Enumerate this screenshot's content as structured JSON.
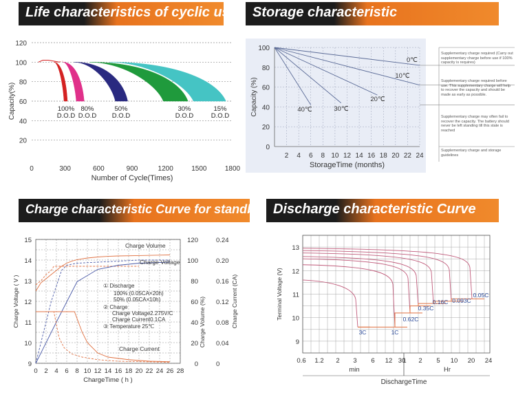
{
  "titles": {
    "life": "Life characteristics of cyclic use",
    "storage": "Storage characteristic",
    "charge": "Charge characteristic Curve for standby use",
    "discharge": "Discharge characteristic Curve"
  },
  "colors": {
    "banner_dark": "#1c1c1c",
    "banner_orange": "#f08a2c",
    "grid": "#7a7a7a",
    "charge_orange": "#e07040",
    "charge_blue": "#4a5aa8"
  },
  "chart_data": [
    {
      "type": "area",
      "title": "Life characteristics of cyclic use",
      "xlabel": "Number of Cycle(Times)",
      "ylabel": "Capacity(%)",
      "xlim": [
        0,
        1800
      ],
      "ylim": [
        0,
        120
      ],
      "x_ticks": [
        "0",
        "300",
        "600",
        "900",
        "1200",
        "1500",
        "1800"
      ],
      "y_ticks": [
        "20",
        "40",
        "60",
        "80",
        "100",
        "120"
      ],
      "series": [
        {
          "name": "100% D.O.D",
          "label1": "100%",
          "label2": "D.O.D",
          "color": "#d42222",
          "start": 200,
          "inner_end": 290,
          "outer_end": 320
        },
        {
          "name": "80% D.O.D",
          "label1": "80%",
          "label2": "D.O.D",
          "color": "#e0308a",
          "start": 280,
          "inner_end": 400,
          "outer_end": 470
        },
        {
          "name": "50% D.O.D",
          "label1": "50%",
          "label2": "D.O.D",
          "color": "#2a2a80",
          "start": 380,
          "inner_end": 750,
          "outer_end": 860
        },
        {
          "name": "30% D.O.D",
          "label1": "30%",
          "label2": "D.O.D",
          "color": "#1f9a3c",
          "start": 520,
          "inner_end": 1180,
          "outer_end": 1400
        },
        {
          "name": "15% D.O.D",
          "label1": "15%",
          "label2": "D.O.D",
          "color": "#45c4c4",
          "start": 700,
          "inner_end": 1450,
          "outer_end": 1740
        }
      ],
      "start_curve": [
        [
          60,
          100
        ],
        [
          100,
          102
        ],
        [
          150,
          102
        ],
        [
          200,
          101
        ],
        [
          250,
          100
        ]
      ]
    },
    {
      "type": "line",
      "title": "Storage characteristic",
      "xlabel": "StorageTime (months)",
      "ylabel": "Capacity (%)",
      "xlim": [
        0,
        24
      ],
      "ylim": [
        0,
        100
      ],
      "x_ticks": [
        "2",
        "4",
        "6",
        "8",
        "10",
        "12",
        "14",
        "16",
        "18",
        "20",
        "22",
        "24"
      ],
      "y_ticks": [
        "0",
        "20",
        "40",
        "60",
        "80",
        "100"
      ],
      "series": [
        {
          "name": "0℃",
          "x": [
            0,
            24
          ],
          "y": [
            100,
            82
          ]
        },
        {
          "name": "10℃",
          "x": [
            0,
            24
          ],
          "y": [
            100,
            62
          ]
        },
        {
          "name": "20℃",
          "x": [
            0,
            17
          ],
          "y": [
            100,
            52
          ]
        },
        {
          "name": "30℃",
          "x": [
            0,
            11
          ],
          "y": [
            100,
            44
          ]
        },
        {
          "name": "40℃",
          "x": [
            0,
            6
          ],
          "y": [
            100,
            42
          ]
        }
      ],
      "thresholds": [
        82,
        62,
        42
      ],
      "notes": [
        "Supplementary charge required (Carry out supplementary charge before use if 100% capacity is requires)",
        "Supplementary charge required before use. This supplementary charge will help to recover the capacity and should be made as early as possible.",
        "Supplementary charge may often fail to recover the capacity. The battery should never be left standing till this state is reached",
        "Supplementary charge and storage guidelines"
      ]
    },
    {
      "type": "line",
      "title": "Charge characteristic Curve for standby use",
      "xlabel": "ChargeTime ( h )",
      "ylabel": "Charge Voltage ( V )",
      "y2label": "Charge Volume (%)",
      "y3label": "Charge Current (CA)",
      "xlim": [
        0,
        28
      ],
      "x_ticks": [
        "0",
        "2",
        "4",
        "6",
        "8",
        "10",
        "12",
        "14",
        "16",
        "18",
        "20",
        "22",
        "24",
        "26",
        "28"
      ],
      "y_ticks": [
        "9",
        "10",
        "11",
        "12",
        "13",
        "14",
        "15"
      ],
      "y2_ticks": [
        "0",
        "20",
        "40",
        "60",
        "80",
        "100",
        "120"
      ],
      "y3_ticks": [
        "0",
        "0.04",
        "0.08",
        "0.12",
        "0.16",
        "0.20",
        "0.24"
      ],
      "curve_labels": {
        "volume": "Charge Volume",
        "voltage": "Charge Voltage",
        "current": "Charge Current"
      },
      "legend": [
        "① Discharge",
        "100% (0.05CA×20h)",
        "50% (0.05CA×10h)",
        "② Charge",
        "Charge Voltage2.275V/C",
        "Charge Current0.1CA",
        "③ Temperature 25℃"
      ],
      "series": [
        {
          "name": "Charge Voltage (100%)",
          "axis": "V",
          "x": [
            0,
            1,
            2,
            3,
            4,
            5,
            6,
            7,
            8,
            10,
            12,
            14,
            16,
            20,
            24,
            26
          ],
          "y": [
            12.5,
            12.9,
            13.1,
            13.3,
            13.5,
            13.7,
            13.85,
            13.95,
            14.02,
            14.1,
            14.15,
            14.18,
            14.2,
            14.22,
            14.24,
            14.25
          ]
        },
        {
          "name": "Charge Voltage (50%)",
          "axis": "V",
          "x": [
            0,
            1,
            2,
            3,
            3.5,
            20
          ],
          "y": [
            12.8,
            13.0,
            13.3,
            13.5,
            13.7,
            13.7
          ]
        },
        {
          "name": "Charge Volume (100%)",
          "axis": "%",
          "x": [
            0,
            4,
            8,
            12,
            16,
            20,
            26
          ],
          "y": [
            0,
            40,
            79,
            91,
            95,
            97,
            98
          ]
        },
        {
          "name": "Charge Volume (50%)",
          "axis": "%",
          "x": [
            0,
            3,
            5,
            6,
            8,
            12,
            20,
            26
          ],
          "y": [
            0,
            60,
            90,
            95,
            97,
            98,
            100,
            100
          ]
        },
        {
          "name": "Charge Current (100%)",
          "axis": "CA",
          "x": [
            0,
            7.5,
            9,
            10,
            12,
            14,
            18,
            22,
            26
          ],
          "y": [
            0.1,
            0.1,
            0.06,
            0.04,
            0.02,
            0.012,
            0.007,
            0.004,
            0.003
          ]
        },
        {
          "name": "Charge Current (50%)",
          "axis": "CA",
          "x": [
            0,
            3.5,
            4.5,
            5.5,
            7,
            9,
            12,
            16,
            26
          ],
          "y": [
            0.1,
            0.1,
            0.05,
            0.03,
            0.018,
            0.012,
            0.007,
            0.004,
            0.002
          ]
        }
      ]
    },
    {
      "type": "line",
      "title": "Discharge characteristic Curve",
      "xlabel": "DischargeTime",
      "ylabel": "Terminal Voltage (V)",
      "ylim": [
        8.5,
        13.5
      ],
      "x_ticks": [
        "0.6",
        "1.2",
        "2",
        "3",
        "6",
        "12",
        "30",
        "1",
        "2",
        "5",
        "10",
        "20",
        "24"
      ],
      "x_units": {
        "min": "min",
        "hr": "Hr"
      },
      "y_ticks": [
        "9",
        "10",
        "11",
        "12",
        "13"
      ],
      "rates": [
        "3C",
        "1C",
        "0.62C",
        "0.35C",
        "0.16C",
        "0.093C",
        "0.05C"
      ],
      "series": [
        {
          "name": "3C",
          "start_v": 11.6,
          "end_x": 0.5,
          "end_v": 9.6
        },
        {
          "name": "1C",
          "start_v": 12.25,
          "end_x": 0.58,
          "end_v": 9.6
        },
        {
          "name": "0.62C",
          "start_v": 12.5,
          "end_x": 0.66,
          "end_v": 10.2
        },
        {
          "name": "0.35C",
          "start_v": 12.6,
          "end_x": 0.78,
          "end_v": 10.5
        },
        {
          "name": "0.16C",
          "start_v": 12.75,
          "end_x": 0.87,
          "end_v": 10.6
        },
        {
          "name": "0.093C",
          "start_v": 12.85,
          "end_x": 0.95,
          "end_v": 10.7
        },
        {
          "name": "0.05C",
          "start_v": 12.95,
          "end_x": 1.0,
          "end_v": 10.8
        }
      ],
      "cutoff_v": [
        9.6,
        9.6,
        10.2,
        10.5,
        10.6,
        10.7,
        10.8
      ]
    }
  ]
}
